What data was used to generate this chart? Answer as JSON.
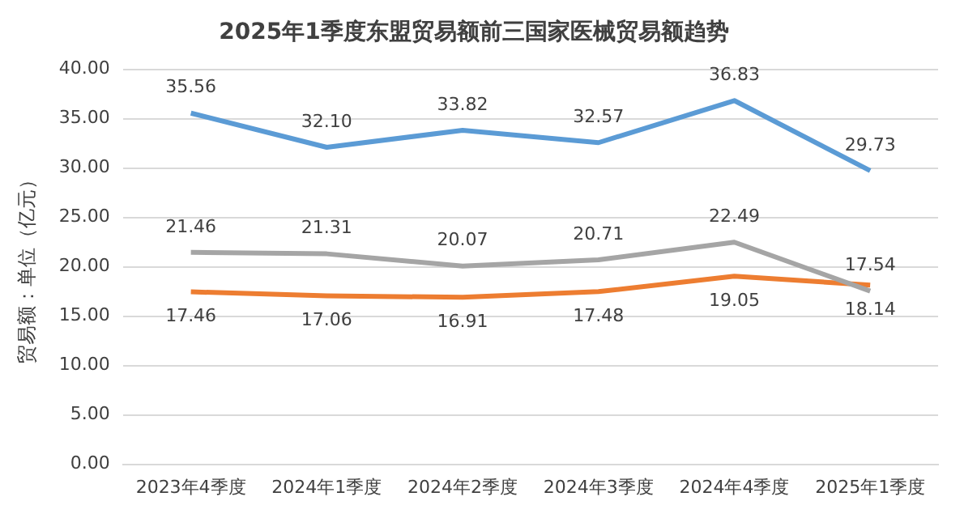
{
  "chart_data": {
    "type": "line",
    "title": "2025年1季度东盟贸易额前三国家医械贸易额趋势",
    "ylabel": "贸易额：单位（亿元）",
    "categories": [
      "2023年4季度",
      "2024年1季度",
      "2024年2季度",
      "2024年3季度",
      "2024年4季度",
      "2025年1季度"
    ],
    "series": [
      {
        "color": "#5b9bd5",
        "values": [
          35.56,
          32.1,
          33.82,
          32.57,
          36.83,
          29.73
        ],
        "value_labels": [
          "35.56",
          "32.10",
          "33.82",
          "32.57",
          "36.83",
          "29.73"
        ]
      },
      {
        "color": "#a5a5a5",
        "values": [
          21.46,
          21.31,
          20.07,
          20.71,
          22.49,
          17.54
        ],
        "value_labels": [
          "21.46",
          "21.31",
          "20.07",
          "20.71",
          "22.49",
          "17.54"
        ]
      },
      {
        "color": "#ed7d31",
        "values": [
          17.46,
          17.06,
          16.91,
          17.48,
          19.05,
          18.14
        ],
        "value_labels": [
          "17.46",
          "17.06",
          "16.91",
          "17.48",
          "19.05",
          "18.14"
        ]
      }
    ],
    "ylim": [
      0,
      40
    ],
    "yticks": [
      {
        "value": 0,
        "label": "0.00"
      },
      {
        "value": 5,
        "label": "5.00"
      },
      {
        "value": 10,
        "label": "10.00"
      },
      {
        "value": 15,
        "label": "15.00"
      },
      {
        "value": 20,
        "label": "20.00"
      },
      {
        "value": 25,
        "label": "25.00"
      },
      {
        "value": 30,
        "label": "30.00"
      },
      {
        "value": 35,
        "label": "35.00"
      },
      {
        "value": 40,
        "label": "40.00"
      }
    ],
    "grid": "y",
    "legend": false,
    "marker": "none",
    "line_style": "solid"
  }
}
